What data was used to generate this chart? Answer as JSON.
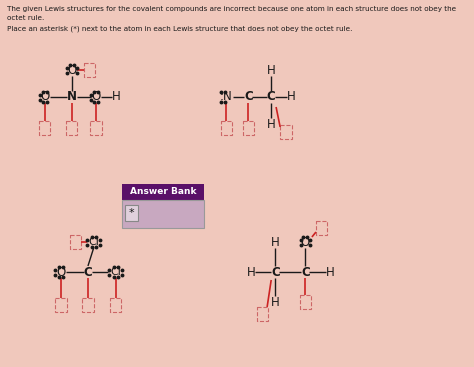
{
  "bg_color": "#f0c8bc",
  "title_line1": "The given Lewis structures for the covalent compounds are incorrect because one atom in each structure does not obey the",
  "title_line2": "octet rule.",
  "subtitle": "Place an asterisk (*) next to the atom in each Lewis structure that does not obey the octet rule.",
  "answer_bank_label": "Answer Bank",
  "answer_bank_bg": "#5a1068",
  "answer_bank_content_bg": "#c8a8c0",
  "text_color": "#1a1a1a",
  "line_color": "#1a1a1a",
  "red_color": "#cc2222",
  "box_color": "#cc6666",
  "dot_color": "#1a1a1a"
}
